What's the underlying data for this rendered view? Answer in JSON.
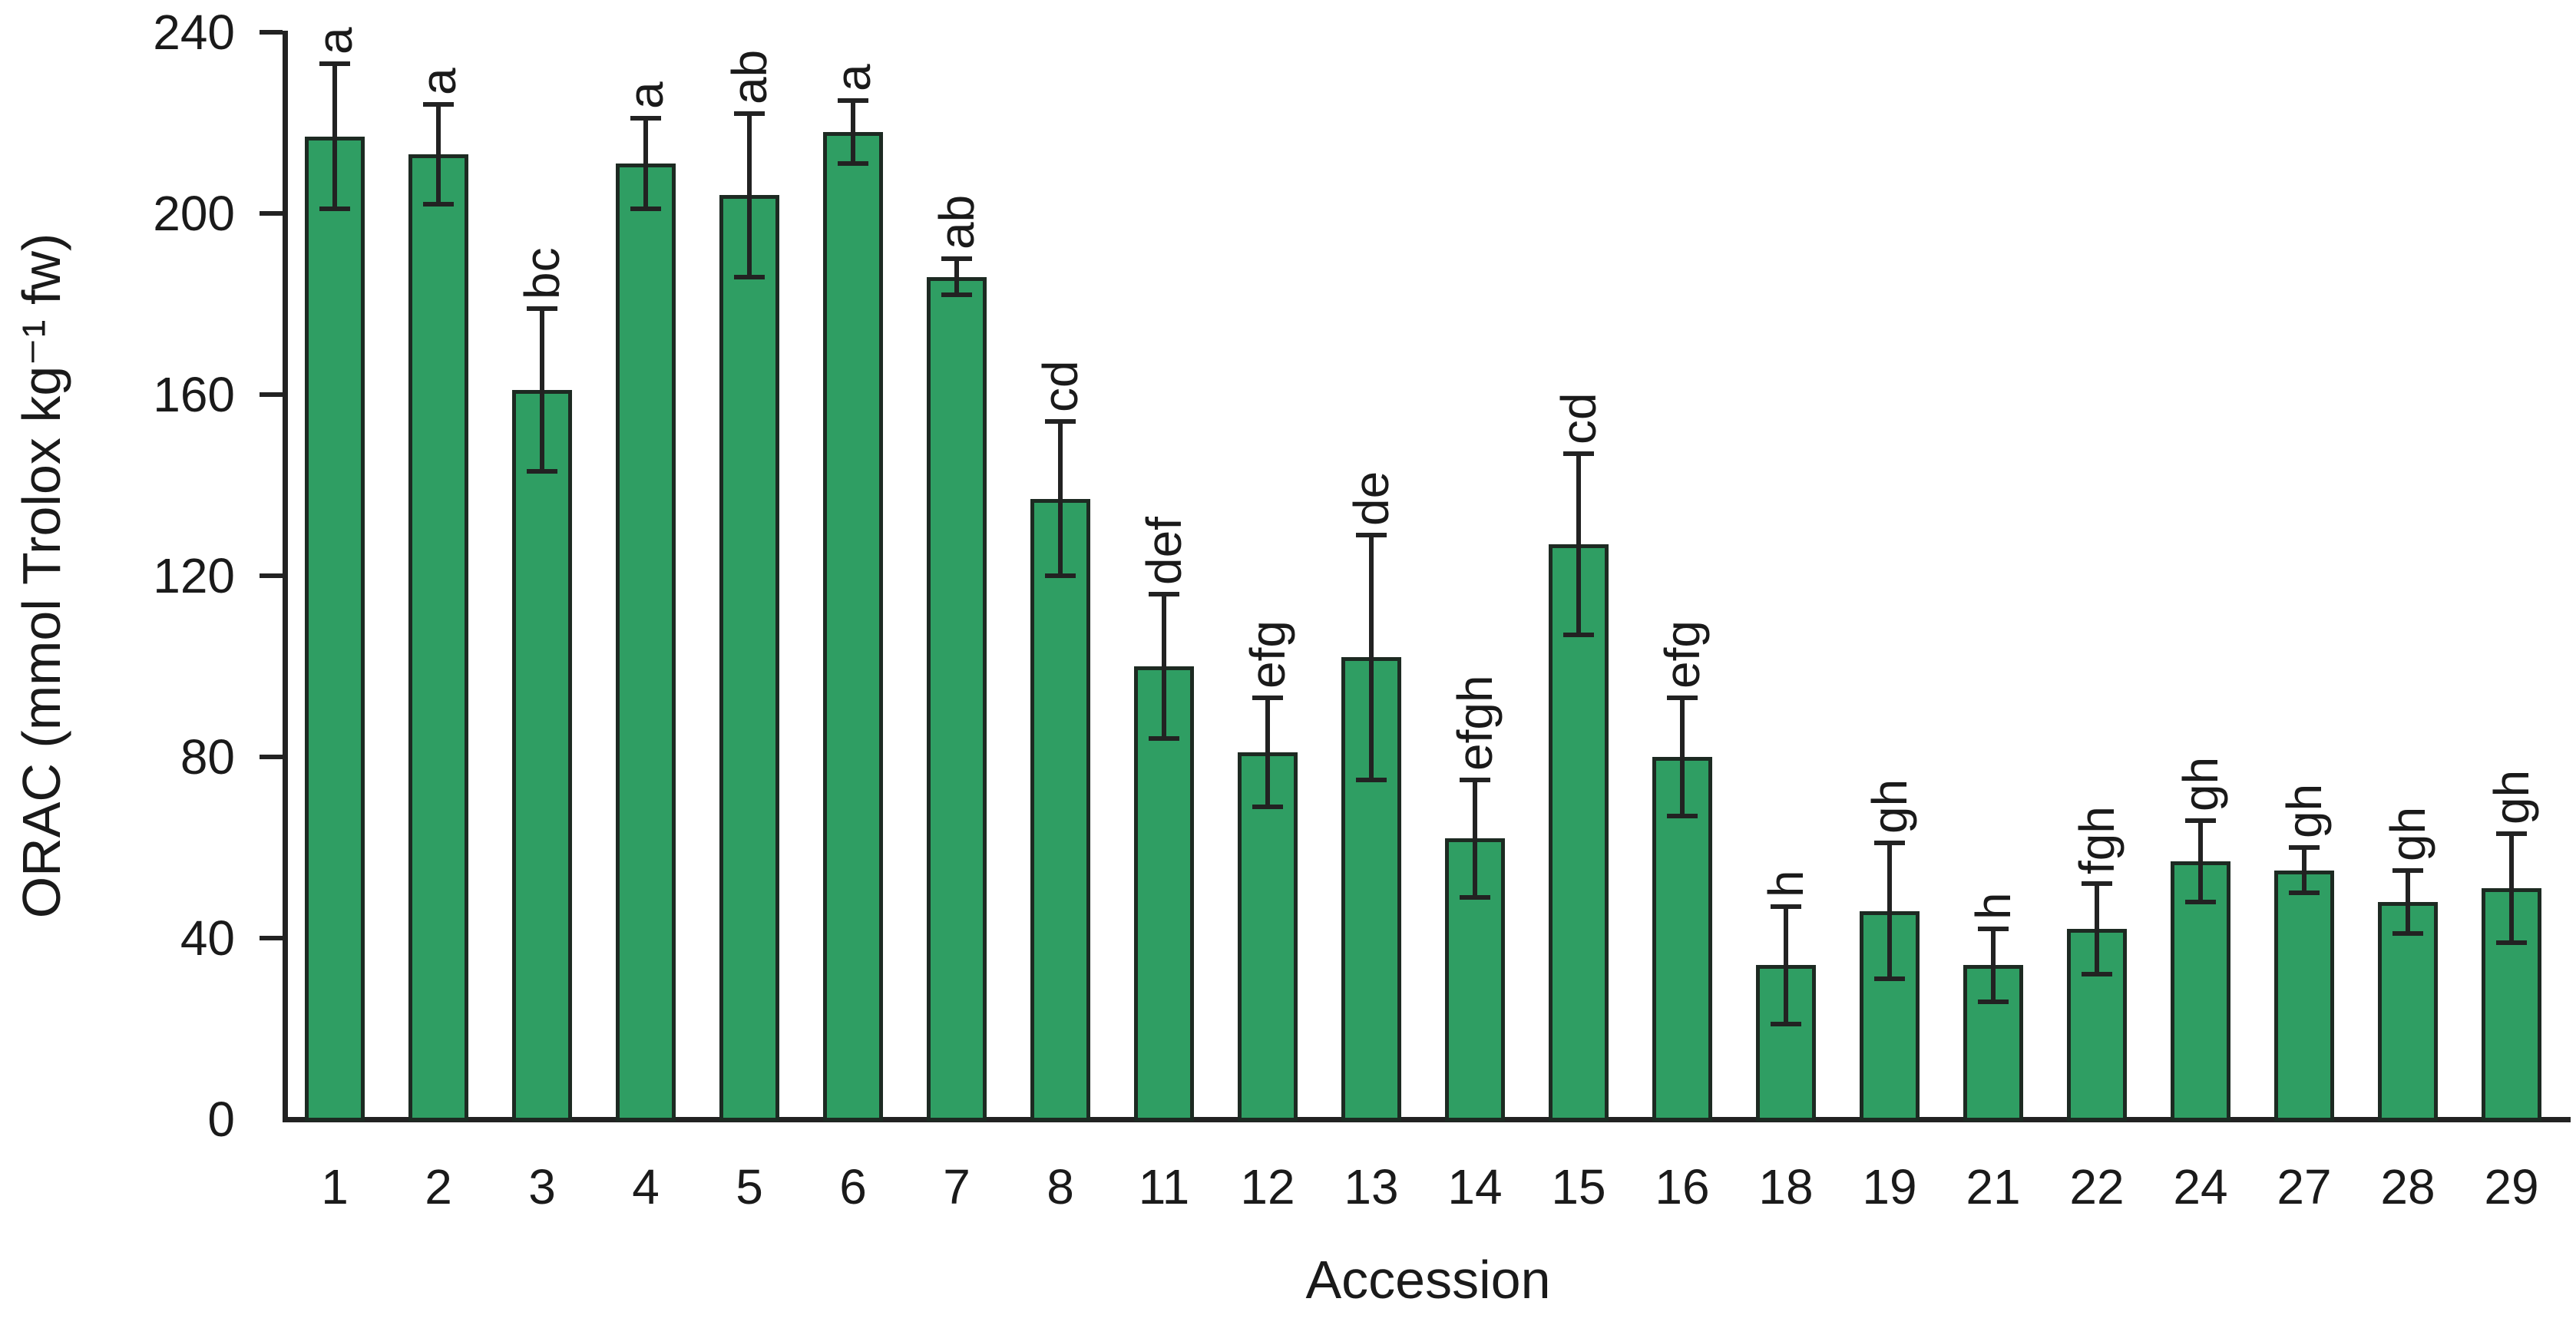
{
  "figure": {
    "background": "#ffffff"
  },
  "chart_data": {
    "type": "bar",
    "title": "",
    "xlabel": "Accession",
    "ylabel": "ORAC (mmol Trolox kg⁻¹ fw)",
    "ylim": [
      0,
      240
    ],
    "yticks": [
      0,
      40,
      80,
      120,
      160,
      200,
      240
    ],
    "grid": false,
    "legend": "none",
    "bar_color": "#2f9e63",
    "bar_border_color": "#1d2a22",
    "error_bar_color": "#222222",
    "categories": [
      "1",
      "2",
      "3",
      "4",
      "5",
      "6",
      "7",
      "8",
      "11",
      "12",
      "13",
      "14",
      "15",
      "16",
      "18",
      "19",
      "21",
      "22",
      "24",
      "27",
      "28",
      "29"
    ],
    "values": [
      217,
      213,
      161,
      211,
      204,
      218,
      186,
      137,
      100,
      81,
      102,
      62,
      127,
      80,
      34,
      46,
      34,
      42,
      57,
      55,
      48,
      51
    ],
    "errors": [
      16,
      11,
      18,
      10,
      18,
      7,
      4,
      17,
      16,
      12,
      27,
      13,
      20,
      13,
      13,
      15,
      8,
      10,
      9,
      5,
      7,
      12
    ],
    "sig_letters": [
      "a",
      "a",
      "bc",
      "a",
      "ab",
      "a",
      "ab",
      "cd",
      "def",
      "efg",
      "de",
      "efgh",
      "cd",
      "efg",
      "h",
      "gh",
      "h",
      "fgh",
      "gh",
      "gh",
      "gh",
      "gh"
    ]
  }
}
